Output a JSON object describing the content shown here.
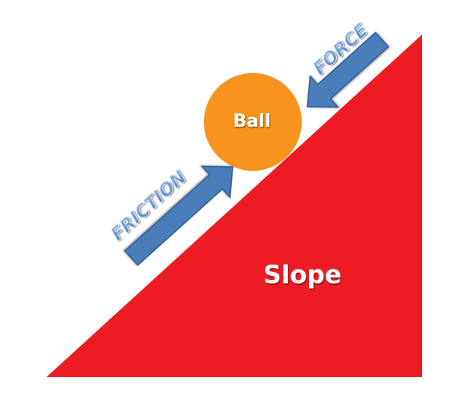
{
  "diagram": {
    "slope": {
      "label": "Slope",
      "color": "#ED1C24",
      "label_color": "#FFFFFF"
    },
    "ball": {
      "label": "Ball",
      "color": "#F7931E",
      "label_color": "#FFFFFF"
    },
    "force_arrow": {
      "label": "FORCE",
      "color": "#4A7EBB",
      "outline": "#2F5A8E",
      "label_color": "#5B9BD5",
      "direction": "down-left along slope"
    },
    "friction_arrow": {
      "label": "FRICTION",
      "color": "#4A7EBB",
      "outline": "#2F5A8E",
      "label_color": "#5B9BD5",
      "direction": "up-right along slope"
    }
  }
}
